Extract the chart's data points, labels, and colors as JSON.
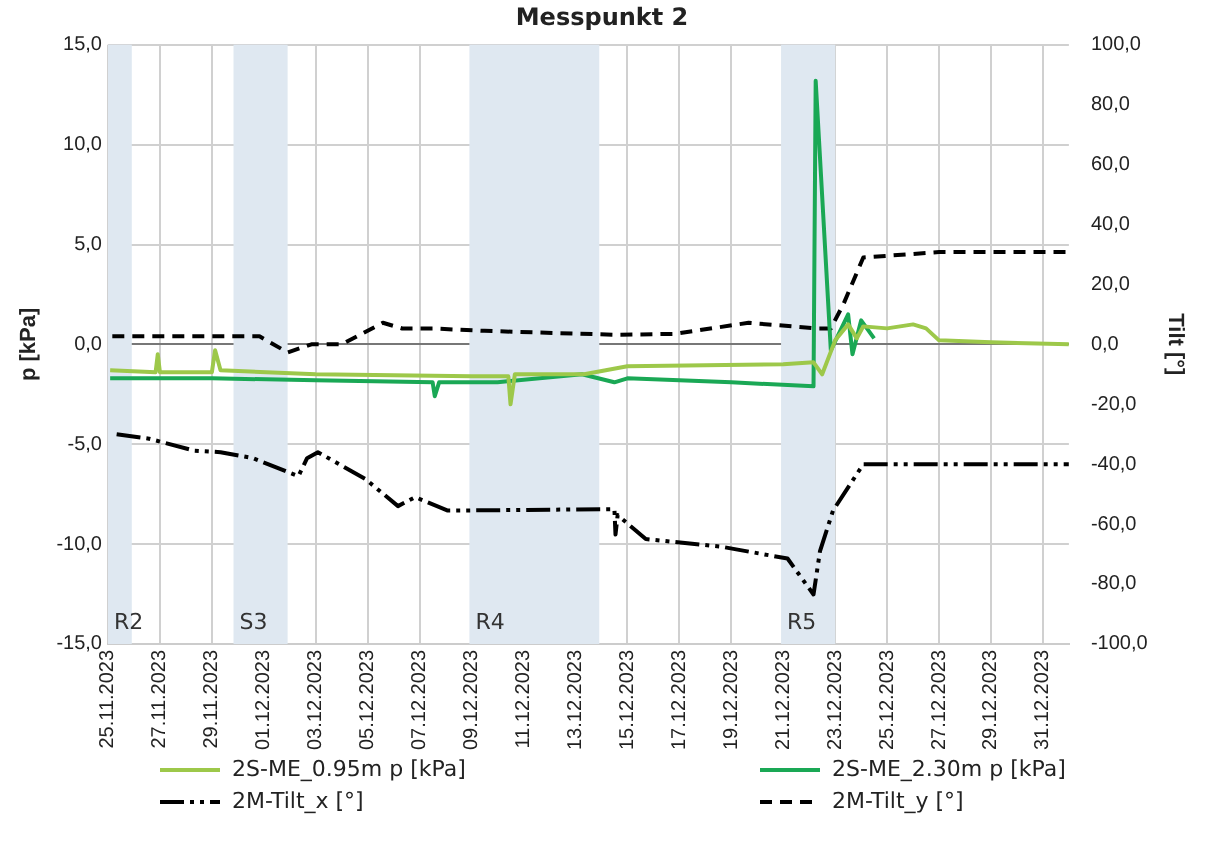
{
  "chart_data": {
    "type": "line",
    "title": "Messpunkt 2",
    "ylabel": "p [kPa]",
    "y2label": "Tilt [°]",
    "xlim": [
      "2023-11-25",
      "2024-01-01"
    ],
    "xticks": [
      {
        "value": "2023-11-25",
        "label": "25.11.2023"
      },
      {
        "value": "2023-11-27",
        "label": "27.11.2023"
      },
      {
        "value": "2023-11-29",
        "label": "29.11.2023"
      },
      {
        "value": "2023-12-01",
        "label": "01.12.2023"
      },
      {
        "value": "2023-12-03",
        "label": "03.12.2023"
      },
      {
        "value": "2023-12-05",
        "label": "05.12.2023"
      },
      {
        "value": "2023-12-07",
        "label": "07.12.2023"
      },
      {
        "value": "2023-12-09",
        "label": "09.12.2023"
      },
      {
        "value": "2023-12-11",
        "label": "11.12.2023"
      },
      {
        "value": "2023-12-13",
        "label": "13.12.2023"
      },
      {
        "value": "2023-12-15",
        "label": "15.12.2023"
      },
      {
        "value": "2023-12-17",
        "label": "17.12.2023"
      },
      {
        "value": "2023-12-19",
        "label": "19.12.2023"
      },
      {
        "value": "2023-12-21",
        "label": "21.12.2023"
      },
      {
        "value": "2023-12-23",
        "label": "23.12.2023"
      },
      {
        "value": "2023-12-25",
        "label": "25.12.2023"
      },
      {
        "value": "2023-12-27",
        "label": "27.12.2023"
      },
      {
        "value": "2023-12-29",
        "label": "29.12.2023"
      },
      {
        "value": "2023-12-31",
        "label": "31.12.2023"
      }
    ],
    "ylim": [
      -15,
      15
    ],
    "yticks": [
      {
        "value": -15,
        "label": "-15,0"
      },
      {
        "value": -10,
        "label": "-10,0"
      },
      {
        "value": -5,
        "label": "-5,0"
      },
      {
        "value": 0,
        "label": "0,0"
      },
      {
        "value": 5,
        "label": "5,0"
      },
      {
        "value": 10,
        "label": "10,0"
      },
      {
        "value": 15,
        "label": "15,0"
      }
    ],
    "y2lim": [
      -100,
      100
    ],
    "y2ticks": [
      {
        "value": -100,
        "label": "-100,0"
      },
      {
        "value": -80,
        "label": "-80,0"
      },
      {
        "value": -60,
        "label": "-60,0"
      },
      {
        "value": -40,
        "label": "-40,0"
      },
      {
        "value": -20,
        "label": "-20,0"
      },
      {
        "value": 0,
        "label": "0,0"
      },
      {
        "value": 20,
        "label": "20,0"
      },
      {
        "value": 40,
        "label": "40,0"
      },
      {
        "value": 60,
        "label": "60,0"
      },
      {
        "value": 80,
        "label": "80,0"
      },
      {
        "value": 100,
        "label": "100,0"
      }
    ],
    "grid": true,
    "legend": "bottom",
    "marker": "none",
    "bands": [
      {
        "axis": "x",
        "from": "2023-11-25T00:00",
        "to": "2023-11-25T22:00",
        "label": "R2",
        "color": "#dfe8f1"
      },
      {
        "axis": "x",
        "from": "2023-11-29T20:00",
        "to": "2023-12-01T22:00",
        "label": "S3",
        "color": "#dfe8f1"
      },
      {
        "axis": "x",
        "from": "2023-12-08T22:00",
        "to": "2023-12-13T22:00",
        "label": "R4",
        "color": "#dfe8f1"
      },
      {
        "axis": "x",
        "from": "2023-12-20T22:00",
        "to": "2023-12-23T00:00",
        "label": "R5",
        "color": "#dfe8f1"
      }
    ],
    "series": [
      {
        "name": "2S-ME_0.95m p [kPa]",
        "color": "#9dc84a",
        "line_style": "solid",
        "x": [
          "2023-11-25T02:00",
          "2023-11-26T20:00",
          "2023-11-26T22:00",
          "2023-11-27T00:00",
          "2023-11-29T00:00",
          "2023-11-29T03:00",
          "2023-11-29T08:00",
          "2023-12-03T00:00",
          "2023-12-09T00:00",
          "2023-12-10T10:00",
          "2023-12-10T12:00",
          "2023-12-10T16:00",
          "2023-12-13T08:00",
          "2023-12-15T00:00",
          "2023-12-21T00:00",
          "2023-12-22T04:00",
          "2023-12-22T12:00",
          "2023-12-23T00:00",
          "2023-12-23T12:00",
          "2023-12-23T20:00",
          "2023-12-24T02:00",
          "2023-12-25T00:00",
          "2023-12-26T00:00",
          "2023-12-26T12:00",
          "2023-12-27T00:00",
          "2023-12-29T00:00",
          "2024-01-01T00:00"
        ],
        "values": [
          -1.3,
          -1.4,
          -0.5,
          -1.4,
          -1.4,
          -0.3,
          -1.3,
          -1.5,
          -1.6,
          -1.6,
          -3.0,
          -1.5,
          -1.5,
          -1.1,
          -1.0,
          -0.9,
          -1.5,
          0.2,
          1.0,
          0.3,
          0.9,
          0.8,
          1.0,
          0.8,
          0.2,
          0.1,
          0.0
        ]
      },
      {
        "name": "2S-ME_2.30m p [kPa]",
        "color": "#1aa855",
        "line_style": "solid",
        "x": [
          "2023-11-25T02:00",
          "2023-11-29T00:00",
          "2023-12-03T00:00",
          "2023-12-07T12:00",
          "2023-12-07T14:00",
          "2023-12-07T18:00",
          "2023-12-10T00:00",
          "2023-12-13T06:00",
          "2023-12-14T12:00",
          "2023-12-15T00:00",
          "2023-12-19T00:00",
          "2023-12-22T04:00",
          "2023-12-22T06:00",
          "2023-12-22T20:00",
          "2023-12-23T12:00",
          "2023-12-23T16:00",
          "2023-12-24T00:00",
          "2023-12-24T12:00"
        ],
        "values": [
          -1.7,
          -1.7,
          -1.8,
          -1.9,
          -2.6,
          -1.9,
          -1.9,
          -1.5,
          -1.9,
          -1.7,
          -1.9,
          -2.1,
          13.2,
          -0.3,
          1.5,
          -0.5,
          1.2,
          0.3
        ]
      },
      {
        "name": "2M-Tilt_x [°]",
        "color": "#000000",
        "line_style": "dotted",
        "axis": "y2",
        "x": [
          "2023-11-25T08:00",
          "2023-11-26T14:00",
          "2023-11-28T08:00",
          "2023-11-29T08:00",
          "2023-11-30T14:00",
          "2023-12-02T08:00",
          "2023-12-02T16:00",
          "2023-12-03T02:00",
          "2023-12-04T22:00",
          "2023-12-06T04:00",
          "2023-12-06T20:00",
          "2023-12-08T02:00",
          "2023-12-14T12:00",
          "2023-12-14T13:00",
          "2023-12-14T15:00",
          "2023-12-15T17:00",
          "2023-12-18T14:00",
          "2023-12-21T04:00",
          "2023-12-22T04:00",
          "2023-12-22T10:00",
          "2023-12-22T22:00",
          "2023-12-24T02:00",
          "2024-01-01T00:00"
        ],
        "values": [
          -30,
          -31.5,
          -35.5,
          -36,
          -38,
          -44,
          -38,
          -36,
          -45,
          -54,
          -51,
          -55.5,
          -55,
          -63.5,
          -57,
          -65,
          -67.5,
          -71.5,
          -83.5,
          -69,
          -55.5,
          -40,
          -40
        ]
      },
      {
        "name": "2M-Tilt_y [°]",
        "color": "#000000",
        "line_style": "dashed",
        "axis": "y2",
        "x": [
          "2023-11-25T04:00",
          "2023-11-30T20:00",
          "2023-12-01T22:00",
          "2023-12-02T20:00",
          "2023-12-04T00:00",
          "2023-12-05T14:00",
          "2023-12-06T08:00",
          "2023-12-07T12:00",
          "2023-12-09T12:00",
          "2023-12-14T12:00",
          "2023-12-16T20:00",
          "2023-12-19T16:00",
          "2023-12-22T08:00",
          "2023-12-22T20:00",
          "2023-12-23T08:00",
          "2023-12-24T02:00",
          "2023-12-27T00:00",
          "2024-01-01T00:00"
        ],
        "values": [
          2.7,
          2.7,
          -2.7,
          0,
          0,
          7.2,
          5.3,
          5.3,
          4.5,
          3.2,
          3.5,
          7.2,
          5.3,
          5.3,
          13.7,
          29,
          30.8,
          30.8
        ]
      }
    ]
  }
}
